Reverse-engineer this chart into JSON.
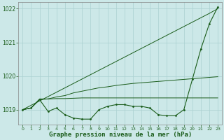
{
  "background_color": "#cce8e8",
  "grid_color": "#aad0d0",
  "line_color": "#1a5c1a",
  "title": "Graphe pression niveau de la mer (hPa)",
  "ylim": [
    1018.55,
    1022.2
  ],
  "xlim": [
    -0.5,
    23.5
  ],
  "yticks": [
    1019,
    1020,
    1021,
    1022
  ],
  "xticks": [
    0,
    1,
    2,
    3,
    4,
    5,
    6,
    7,
    8,
    9,
    10,
    11,
    12,
    13,
    14,
    15,
    16,
    17,
    18,
    19,
    20,
    21,
    22,
    23
  ],
  "series": {
    "line_marked": [
      1019.0,
      1019.05,
      1019.3,
      1018.95,
      1019.05,
      1018.85,
      1018.75,
      1018.72,
      1018.72,
      1019.0,
      1019.1,
      1019.15,
      1019.15,
      1019.1,
      1019.1,
      1019.05,
      1018.85,
      1018.82,
      1018.82,
      1019.0,
      1019.9,
      1020.8,
      1021.55,
      1022.05
    ],
    "line_diagonal": [
      1019.0,
      1019.13,
      1019.26,
      1019.39,
      1019.52,
      1019.65,
      1019.78,
      1019.91,
      1020.04,
      1020.17,
      1020.3,
      1020.43,
      1020.56,
      1020.69,
      1020.82,
      1020.95,
      1021.08,
      1021.21,
      1021.34,
      1021.47,
      1021.6,
      1021.73,
      1021.86,
      1022.0
    ],
    "line_mid_rise": [
      1019.0,
      1019.05,
      1019.3,
      1019.32,
      1019.38,
      1019.42,
      1019.5,
      1019.55,
      1019.6,
      1019.65,
      1019.68,
      1019.72,
      1019.75,
      1019.78,
      1019.8,
      1019.82,
      1019.84,
      1019.86,
      1019.88,
      1019.9,
      1019.92,
      1019.94,
      1019.96,
      1019.98
    ],
    "line_flat": [
      1019.0,
      1019.05,
      1019.32,
      1019.32,
      1019.33,
      1019.33,
      1019.34,
      1019.35,
      1019.35,
      1019.35,
      1019.35,
      1019.35,
      1019.35,
      1019.35,
      1019.35,
      1019.35,
      1019.35,
      1019.35,
      1019.35,
      1019.35,
      1019.35,
      1019.35,
      1019.35,
      1019.35
    ]
  }
}
